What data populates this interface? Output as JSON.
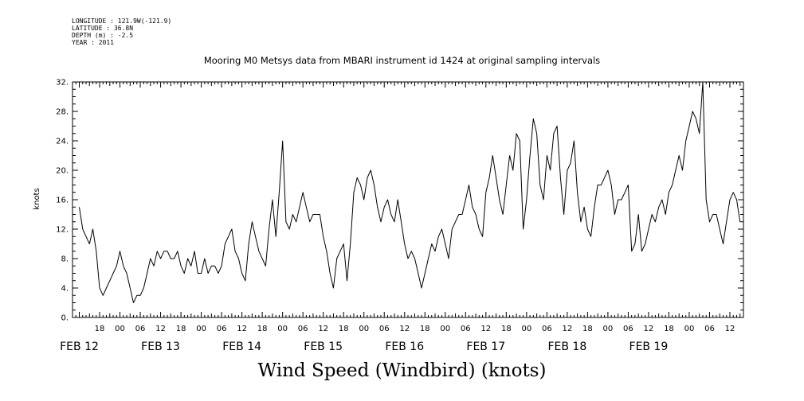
{
  "header": {
    "meta_lines": [
      "LONGITUDE : 121.9W(-121.9)",
      "LATITUDE : 36.8N",
      "DEPTH (m) : -2.5",
      "YEAR : 2011"
    ],
    "title": "Mooring M0 Metsys data from MBARI instrument id 1424 at original sampling intervals"
  },
  "footer": {
    "label": "Wind Speed (Windbird) (knots)"
  },
  "chart_data": {
    "type": "line",
    "title": "Mooring M0 Metsys data from MBARI instrument id 1424 at original sampling intervals",
    "xlabel": "",
    "ylabel": "knots",
    "ylim": [
      0,
      32
    ],
    "yticks": [
      0,
      4,
      8,
      12,
      16,
      20,
      24,
      28,
      32
    ],
    "ytick_labels": [
      "0.",
      "4.",
      "8.",
      "12.",
      "16.",
      "20.",
      "24.",
      "28.",
      "32."
    ],
    "xlim_hours": [
      -2,
      196
    ],
    "xtick_hour_labels": [
      {
        "t": 6,
        "label": "18"
      },
      {
        "t": 12,
        "label": "00"
      },
      {
        "t": 18,
        "label": "06"
      },
      {
        "t": 24,
        "label": "12"
      },
      {
        "t": 30,
        "label": "18"
      },
      {
        "t": 36,
        "label": "00"
      },
      {
        "t": 42,
        "label": "06"
      },
      {
        "t": 48,
        "label": "12"
      },
      {
        "t": 54,
        "label": "18"
      },
      {
        "t": 60,
        "label": "00"
      },
      {
        "t": 66,
        "label": "06"
      },
      {
        "t": 72,
        "label": "12"
      },
      {
        "t": 78,
        "label": "18"
      },
      {
        "t": 84,
        "label": "00"
      },
      {
        "t": 90,
        "label": "06"
      },
      {
        "t": 96,
        "label": "12"
      },
      {
        "t": 102,
        "label": "18"
      },
      {
        "t": 108,
        "label": "00"
      },
      {
        "t": 114,
        "label": "06"
      },
      {
        "t": 120,
        "label": "12"
      },
      {
        "t": 126,
        "label": "18"
      },
      {
        "t": 132,
        "label": "00"
      },
      {
        "t": 138,
        "label": "06"
      },
      {
        "t": 144,
        "label": "12"
      },
      {
        "t": 150,
        "label": "18"
      },
      {
        "t": 156,
        "label": "00"
      },
      {
        "t": 162,
        "label": "06"
      },
      {
        "t": 168,
        "label": "12"
      },
      {
        "t": 174,
        "label": "18"
      },
      {
        "t": 180,
        "label": "00"
      },
      {
        "t": 186,
        "label": "06"
      },
      {
        "t": 192,
        "label": "12"
      }
    ],
    "date_labels": [
      {
        "t": 0,
        "label": "FEB 12"
      },
      {
        "t": 24,
        "label": "FEB 13"
      },
      {
        "t": 48,
        "label": "FEB 14"
      },
      {
        "t": 72,
        "label": "FEB 15"
      },
      {
        "t": 96,
        "label": "FEB 16"
      },
      {
        "t": 120,
        "label": "FEB 17"
      },
      {
        "t": 144,
        "label": "FEB 18"
      },
      {
        "t": 168,
        "label": "FEB 19"
      }
    ],
    "grid": false,
    "series": [
      {
        "color": "#000000",
        "x": [
          0,
          1,
          2,
          3,
          4,
          5,
          6,
          7,
          8,
          9,
          10,
          11,
          12,
          13,
          14,
          15,
          16,
          17,
          18,
          19,
          20,
          21,
          22,
          23,
          24,
          25,
          26,
          27,
          28,
          29,
          30,
          31,
          32,
          33,
          34,
          35,
          36,
          37,
          38,
          39,
          40,
          41,
          42,
          43,
          44,
          45,
          46,
          47,
          48,
          49,
          50,
          51,
          52,
          53,
          54,
          55,
          56,
          57,
          58,
          59,
          60,
          61,
          62,
          63,
          64,
          65,
          66,
          67,
          68,
          69,
          70,
          71,
          72,
          73,
          74,
          75,
          76,
          77,
          78,
          79,
          80,
          81,
          82,
          83,
          84,
          85,
          86,
          87,
          88,
          89,
          90,
          91,
          92,
          93,
          94,
          95,
          96,
          97,
          98,
          99,
          100,
          101,
          102,
          103,
          104,
          105,
          106,
          107,
          108,
          109,
          110,
          111,
          112,
          113,
          114,
          115,
          116,
          117,
          118,
          119,
          120,
          121,
          122,
          123,
          124,
          125,
          126,
          127,
          128,
          129,
          130,
          131,
          132,
          133,
          134,
          135,
          136,
          137,
          138,
          139,
          140,
          141,
          142,
          143,
          144,
          145,
          146,
          147,
          148,
          149,
          150,
          151,
          152,
          153,
          154,
          155,
          156,
          157,
          158,
          159,
          160,
          161,
          162,
          163,
          164,
          165,
          166,
          167,
          168,
          169,
          170,
          171,
          172,
          173,
          174,
          175,
          176,
          177,
          178,
          179,
          180,
          181,
          182,
          183,
          184,
          185,
          186,
          187,
          188,
          189,
          190,
          191,
          192,
          193,
          194,
          195
        ],
        "y": [
          15,
          12,
          11,
          10,
          12,
          9,
          4,
          3,
          4,
          5,
          6,
          7,
          9,
          7,
          6,
          4,
          2,
          3,
          3,
          4,
          6,
          8,
          7,
          9,
          8,
          9,
          9,
          8,
          8,
          9,
          7,
          6,
          8,
          7,
          9,
          6,
          6,
          8,
          6,
          7,
          7,
          6,
          7,
          10,
          11,
          12,
          9,
          8,
          6,
          5,
          10,
          13,
          11,
          9,
          8,
          7,
          12,
          16,
          11,
          17,
          24,
          13,
          12,
          14,
          13,
          15,
          17,
          15,
          13,
          14,
          14,
          14,
          11,
          9,
          6,
          4,
          8,
          9,
          10,
          5,
          10,
          17,
          19,
          18,
          16,
          19,
          20,
          18,
          15,
          13,
          15,
          16,
          14,
          13,
          16,
          13,
          10,
          8,
          9,
          8,
          6,
          4,
          6,
          8,
          10,
          9,
          11,
          12,
          10,
          8,
          12,
          13,
          14,
          14,
          16,
          18,
          15,
          14,
          12,
          11,
          17,
          19,
          22,
          19,
          16,
          14,
          18,
          22,
          20,
          25,
          24,
          12,
          16,
          22,
          27,
          25,
          18,
          16,
          22,
          20,
          25,
          26,
          19,
          14,
          20,
          21,
          24,
          17,
          13,
          15,
          12,
          11,
          15,
          18,
          18,
          19,
          20,
          18,
          14,
          16,
          16,
          17,
          18,
          9,
          10,
          14,
          9,
          10,
          12,
          14,
          13,
          15,
          16,
          14,
          17,
          18,
          20,
          22,
          20,
          24,
          26,
          28,
          27,
          25,
          32,
          16,
          13,
          14,
          14,
          12,
          10,
          13,
          16,
          17,
          16,
          13
        ]
      }
    ]
  }
}
